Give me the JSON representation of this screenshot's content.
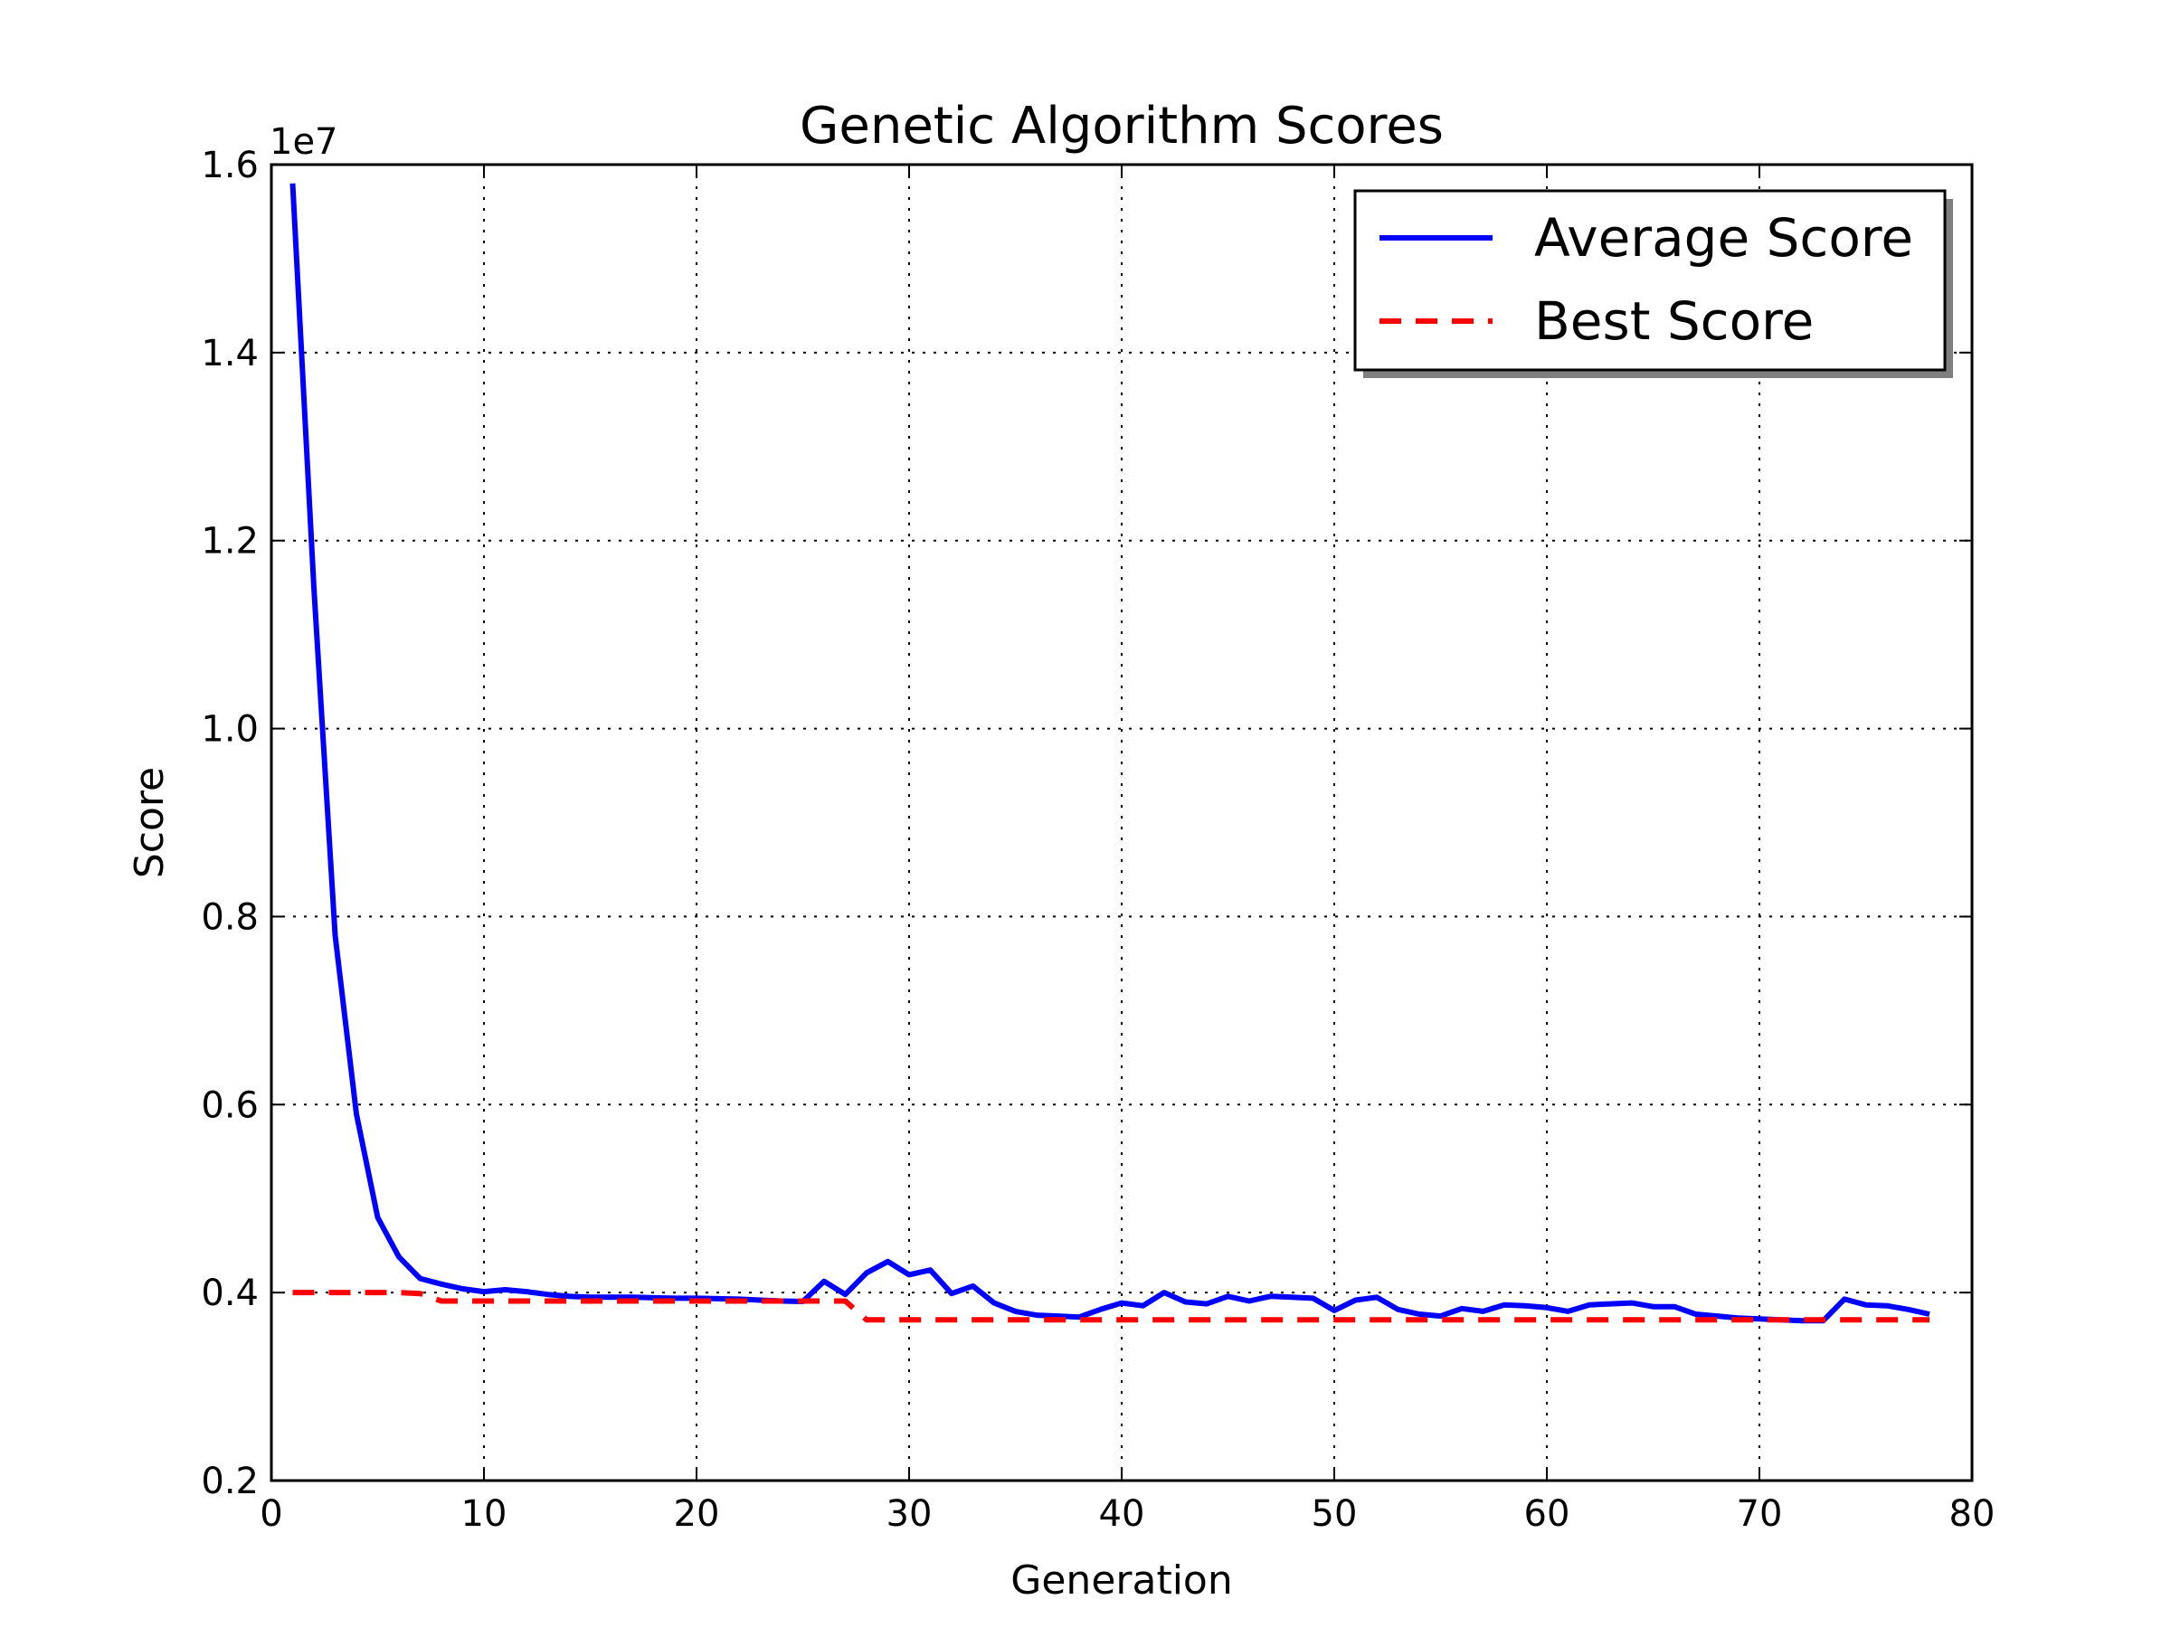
{
  "chart_data": {
    "type": "line",
    "title": "Genetic Algorithm Scores",
    "xlabel": "Generation",
    "ylabel": "Score",
    "y_exponent_label": "1e7",
    "xlim": [
      0,
      80
    ],
    "ylim": [
      2000000,
      16000000
    ],
    "x_ticks": [
      0,
      10,
      20,
      30,
      40,
      50,
      60,
      70,
      80
    ],
    "x_tick_labels": [
      "0",
      "10",
      "20",
      "30",
      "40",
      "50",
      "60",
      "70",
      "80"
    ],
    "y_ticks": [
      2000000,
      4000000,
      6000000,
      8000000,
      10000000,
      12000000,
      14000000,
      16000000
    ],
    "y_tick_labels": [
      "0.2",
      "0.4",
      "0.6",
      "0.8",
      "1.0",
      "1.2",
      "1.4",
      "1.6"
    ],
    "grid": true,
    "legend_position": "top-right",
    "series": [
      {
        "name": "Average Score",
        "color": "#0000ff",
        "style": "solid",
        "x": [
          1,
          2,
          3,
          4,
          5,
          6,
          7,
          8,
          9,
          10,
          11,
          12,
          13,
          14,
          15,
          16,
          17,
          18,
          19,
          20,
          21,
          22,
          23,
          24,
          25,
          26,
          27,
          28,
          29,
          30,
          31,
          32,
          33,
          34,
          35,
          36,
          37,
          38,
          39,
          40,
          41,
          42,
          43,
          44,
          45,
          46,
          47,
          48,
          49,
          50,
          51,
          52,
          53,
          54,
          55,
          56,
          57,
          58,
          59,
          60,
          61,
          62,
          63,
          64,
          65,
          66,
          67,
          68,
          69,
          70,
          71,
          72,
          73,
          74,
          75,
          76,
          77,
          78
        ],
        "values": [
          15800000,
          11500000,
          7800000,
          5900000,
          4800000,
          4380000,
          4150000,
          4090000,
          4040000,
          4010000,
          4030000,
          4010000,
          3980000,
          3960000,
          3950000,
          3950000,
          3950000,
          3945000,
          3940000,
          3940000,
          3935000,
          3930000,
          3920000,
          3910000,
          3905000,
          4120000,
          3980000,
          4210000,
          4330000,
          4190000,
          4240000,
          3990000,
          4070000,
          3890000,
          3800000,
          3760000,
          3750000,
          3740000,
          3820000,
          3890000,
          3860000,
          4000000,
          3900000,
          3880000,
          3960000,
          3910000,
          3960000,
          3950000,
          3940000,
          3810000,
          3920000,
          3950000,
          3820000,
          3770000,
          3750000,
          3830000,
          3800000,
          3870000,
          3860000,
          3840000,
          3800000,
          3870000,
          3880000,
          3890000,
          3850000,
          3850000,
          3770000,
          3750000,
          3730000,
          3720000,
          3710000,
          3700000,
          3700000,
          3930000,
          3870000,
          3860000,
          3820000,
          3770000
        ]
      },
      {
        "name": "Best Score",
        "color": "#ff0000",
        "style": "dashed",
        "x": [
          1,
          2,
          3,
          4,
          5,
          6,
          7,
          8,
          9,
          10,
          11,
          12,
          13,
          14,
          15,
          16,
          17,
          18,
          19,
          20,
          21,
          22,
          23,
          24,
          25,
          26,
          27,
          28,
          29,
          30,
          31,
          32,
          33,
          34,
          35,
          36,
          37,
          38,
          39,
          40,
          41,
          42,
          43,
          44,
          45,
          46,
          47,
          48,
          49,
          50,
          51,
          52,
          53,
          54,
          55,
          56,
          57,
          58,
          59,
          60,
          61,
          62,
          63,
          64,
          65,
          66,
          67,
          68,
          69,
          70,
          71,
          72,
          73,
          74,
          75,
          76,
          77,
          78
        ],
        "values": [
          4000000,
          4000000,
          4000000,
          4000000,
          4000000,
          4000000,
          3990000,
          3910000,
          3910000,
          3910000,
          3910000,
          3910000,
          3910000,
          3910000,
          3910000,
          3910000,
          3910000,
          3910000,
          3910000,
          3910000,
          3910000,
          3910000,
          3910000,
          3910000,
          3910000,
          3910000,
          3910000,
          3710000,
          3710000,
          3710000,
          3710000,
          3710000,
          3710000,
          3710000,
          3710000,
          3710000,
          3710000,
          3710000,
          3710000,
          3710000,
          3710000,
          3710000,
          3710000,
          3710000,
          3710000,
          3710000,
          3710000,
          3710000,
          3710000,
          3710000,
          3710000,
          3710000,
          3710000,
          3710000,
          3710000,
          3710000,
          3710000,
          3710000,
          3710000,
          3710000,
          3710000,
          3710000,
          3710000,
          3710000,
          3710000,
          3710000,
          3710000,
          3710000,
          3710000,
          3710000,
          3710000,
          3710000,
          3710000,
          3710000,
          3710000,
          3710000,
          3710000,
          3710000
        ]
      }
    ]
  }
}
